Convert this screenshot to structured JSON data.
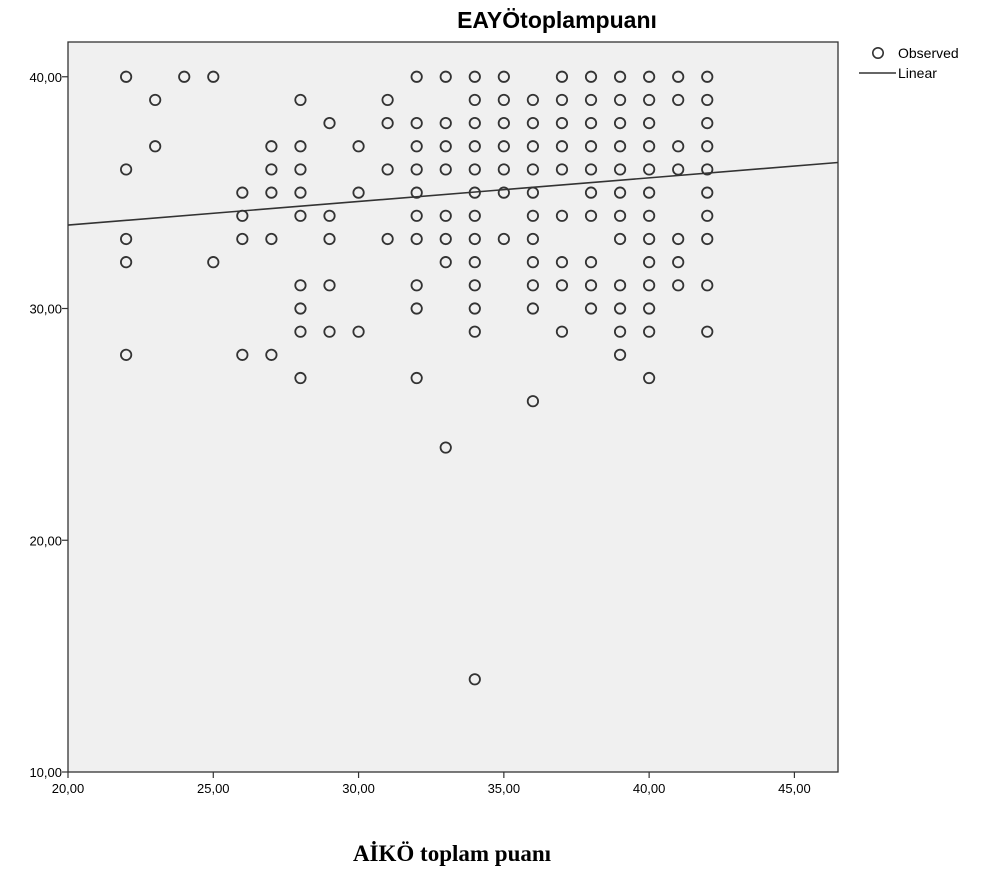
{
  "chart_data": {
    "type": "scatter",
    "title": "EAYÖtoplampuanı",
    "xlabel": "AİKÖ toplam puanı",
    "ylabel": "",
    "xlim": [
      20,
      46.5
    ],
    "ylim": [
      10,
      41.5
    ],
    "x_ticks": [
      "20,00",
      "25,00",
      "30,00",
      "35,00",
      "40,00",
      "45,00"
    ],
    "x_tick_values": [
      20,
      25,
      30,
      35,
      40,
      45
    ],
    "y_ticks": [
      "10,00",
      "20,00",
      "30,00",
      "40,00"
    ],
    "y_tick_values": [
      10,
      20,
      30,
      40
    ],
    "grid": false,
    "legend_position": "top-right",
    "legend": {
      "observed": "Observed",
      "linear": "Linear"
    },
    "colors": {
      "plot_background": "#f0f0f0",
      "marker": "#333333",
      "fit_line": "#333333",
      "frame": "#333333"
    },
    "series": [
      {
        "name": "Observed",
        "points": [
          [
            22,
            40
          ],
          [
            22,
            36
          ],
          [
            22,
            33
          ],
          [
            22,
            32
          ],
          [
            22,
            28
          ],
          [
            23,
            39
          ],
          [
            23,
            37
          ],
          [
            24,
            40
          ],
          [
            25,
            40
          ],
          [
            25,
            32
          ],
          [
            26,
            35
          ],
          [
            26,
            34
          ],
          [
            26,
            33
          ],
          [
            26,
            28
          ],
          [
            27,
            37
          ],
          [
            27,
            36
          ],
          [
            27,
            35
          ],
          [
            27,
            33
          ],
          [
            27,
            28
          ],
          [
            28,
            39
          ],
          [
            28,
            37
          ],
          [
            28,
            36
          ],
          [
            28,
            35
          ],
          [
            28,
            34
          ],
          [
            28,
            31
          ],
          [
            28,
            30
          ],
          [
            28,
            29
          ],
          [
            28,
            27
          ],
          [
            29,
            38
          ],
          [
            29,
            34
          ],
          [
            29,
            33
          ],
          [
            29,
            31
          ],
          [
            29,
            29
          ],
          [
            30,
            37
          ],
          [
            30,
            35
          ],
          [
            30,
            29
          ],
          [
            31,
            39
          ],
          [
            31,
            38
          ],
          [
            31,
            36
          ],
          [
            31,
            33
          ],
          [
            32,
            40
          ],
          [
            32,
            38
          ],
          [
            32,
            37
          ],
          [
            32,
            36
          ],
          [
            32,
            35
          ],
          [
            32,
            34
          ],
          [
            32,
            33
          ],
          [
            32,
            31
          ],
          [
            32,
            30
          ],
          [
            32,
            27
          ],
          [
            33,
            40
          ],
          [
            33,
            38
          ],
          [
            33,
            37
          ],
          [
            33,
            36
          ],
          [
            33,
            34
          ],
          [
            33,
            33
          ],
          [
            33,
            32
          ],
          [
            33,
            24
          ],
          [
            34,
            40
          ],
          [
            34,
            39
          ],
          [
            34,
            38
          ],
          [
            34,
            37
          ],
          [
            34,
            36
          ],
          [
            34,
            35
          ],
          [
            34,
            34
          ],
          [
            34,
            33
          ],
          [
            34,
            32
          ],
          [
            34,
            31
          ],
          [
            34,
            30
          ],
          [
            34,
            29
          ],
          [
            34,
            14
          ],
          [
            35,
            40
          ],
          [
            35,
            39
          ],
          [
            35,
            38
          ],
          [
            35,
            37
          ],
          [
            35,
            36
          ],
          [
            35,
            35
          ],
          [
            35,
            33
          ],
          [
            36,
            39
          ],
          [
            36,
            38
          ],
          [
            36,
            37
          ],
          [
            36,
            36
          ],
          [
            36,
            35
          ],
          [
            36,
            34
          ],
          [
            36,
            33
          ],
          [
            36,
            32
          ],
          [
            36,
            31
          ],
          [
            36,
            30
          ],
          [
            36,
            26
          ],
          [
            37,
            40
          ],
          [
            37,
            39
          ],
          [
            37,
            38
          ],
          [
            37,
            37
          ],
          [
            37,
            36
          ],
          [
            37,
            34
          ],
          [
            37,
            32
          ],
          [
            37,
            31
          ],
          [
            37,
            29
          ],
          [
            38,
            40
          ],
          [
            38,
            39
          ],
          [
            38,
            38
          ],
          [
            38,
            37
          ],
          [
            38,
            36
          ],
          [
            38,
            35
          ],
          [
            38,
            34
          ],
          [
            38,
            32
          ],
          [
            38,
            31
          ],
          [
            38,
            30
          ],
          [
            39,
            40
          ],
          [
            39,
            39
          ],
          [
            39,
            38
          ],
          [
            39,
            37
          ],
          [
            39,
            36
          ],
          [
            39,
            35
          ],
          [
            39,
            34
          ],
          [
            39,
            33
          ],
          [
            39,
            31
          ],
          [
            39,
            30
          ],
          [
            39,
            29
          ],
          [
            39,
            28
          ],
          [
            40,
            40
          ],
          [
            40,
            39
          ],
          [
            40,
            38
          ],
          [
            40,
            37
          ],
          [
            40,
            36
          ],
          [
            40,
            35
          ],
          [
            40,
            34
          ],
          [
            40,
            33
          ],
          [
            40,
            32
          ],
          [
            40,
            31
          ],
          [
            40,
            30
          ],
          [
            40,
            29
          ],
          [
            40,
            27
          ],
          [
            41,
            40
          ],
          [
            41,
            39
          ],
          [
            41,
            37
          ],
          [
            41,
            36
          ],
          [
            41,
            33
          ],
          [
            41,
            32
          ],
          [
            41,
            31
          ],
          [
            42,
            40
          ],
          [
            42,
            39
          ],
          [
            42,
            38
          ],
          [
            42,
            37
          ],
          [
            42,
            36
          ],
          [
            42,
            35
          ],
          [
            42,
            34
          ],
          [
            42,
            33
          ],
          [
            42,
            31
          ],
          [
            42,
            29
          ]
        ]
      },
      {
        "name": "Linear",
        "line": [
          [
            20,
            33.6
          ],
          [
            46.5,
            36.3
          ]
        ]
      }
    ]
  }
}
